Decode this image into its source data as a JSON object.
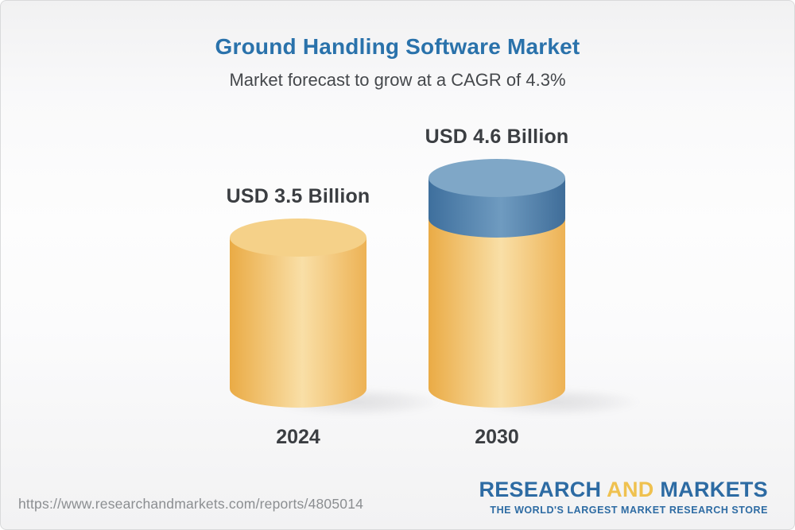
{
  "header": {
    "title": "Ground Handling Software Market",
    "subtitle": "Market forecast to grow at a CAGR of 4.3%"
  },
  "chart_data": {
    "type": "bar",
    "variant": "3d-cylinder",
    "title": "Ground Handling Software Market",
    "subtitle": "Market forecast to grow at a CAGR of 4.3%",
    "cagr": "4.3%",
    "axes": "none",
    "grid": false,
    "legend": "none",
    "categories": [
      "2024",
      "2030"
    ],
    "values": [
      3.5,
      4.6
    ],
    "bars": [
      {
        "category": "2024",
        "label": "USD 3.5 Billion",
        "total": 3.5,
        "segments": [
          {
            "value": 3.5,
            "color": "yellow"
          }
        ]
      },
      {
        "category": "2030",
        "label": "USD 4.6 Billion",
        "total": 4.6,
        "segments": [
          {
            "value": 3.5,
            "color": "yellow"
          },
          {
            "value": 1.1,
            "color": "blue"
          }
        ]
      }
    ],
    "colors": {
      "yellow": {
        "cap": "#F5D189",
        "edge": "#EAAB45",
        "mid": "#F9DFA7",
        "edge2": "#EDB254"
      },
      "blue": {
        "cap": "#7FA7C7",
        "edge": "#3E6F9D",
        "mid": "#6F9BC0",
        "edge2": "#3F6D99"
      }
    }
  },
  "footer": {
    "url": "https://www.researchandmarkets.com/reports/4805014",
    "logo": {
      "part1": "RESEARCH",
      "part2": "AND",
      "part3": "MARKETS",
      "tagline": "THE WORLD'S LARGEST MARKET RESEARCH STORE",
      "blue": "#2D6BA3",
      "yellow": "#EFC14F"
    }
  }
}
